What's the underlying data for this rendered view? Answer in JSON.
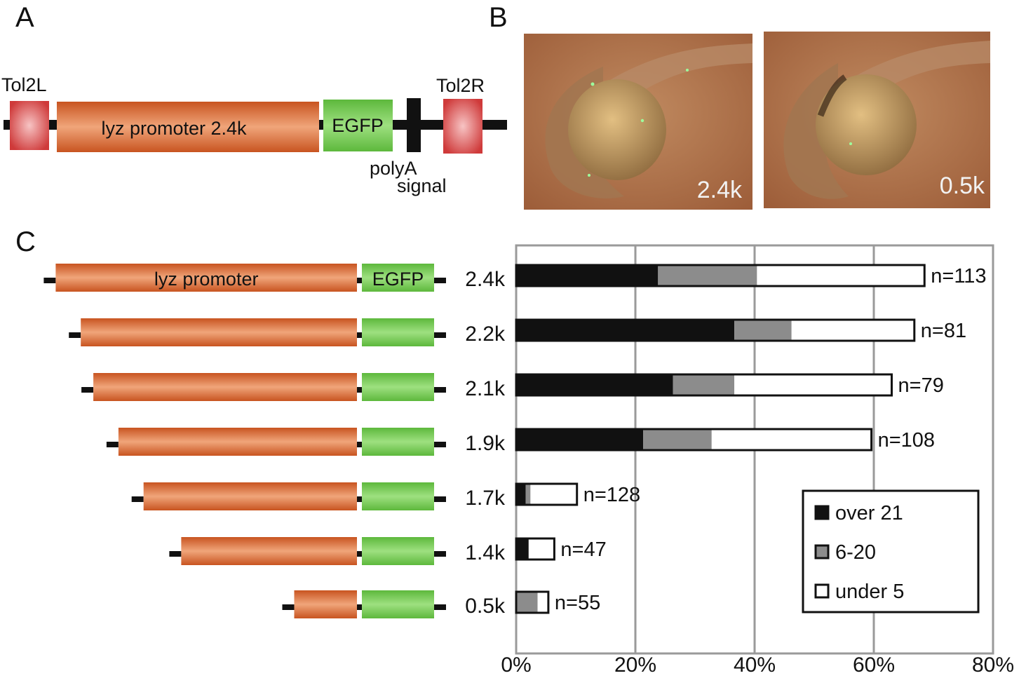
{
  "panels": {
    "a": "A",
    "b": "B",
    "c": "C"
  },
  "panel_a": {
    "tol2l": "Tol2L",
    "tol2r": "Tol2R",
    "promoter": "lyz promoter 2.4k",
    "egfp": "EGFP",
    "polya_line1": "polyA",
    "polya_line2": "signal"
  },
  "panel_b": {
    "photo1_label": "2.4k",
    "photo2_label": "0.5k"
  },
  "panel_c": {
    "promoter_label": "lyz promoter",
    "egfp_label": "EGFP",
    "construct_lengths_k": [
      2.4,
      2.2,
      2.1,
      1.9,
      1.7,
      1.4,
      0.5
    ]
  },
  "colors": {
    "promoter": "#d9622a",
    "egfp": "#6cc44a",
    "tol2": "#d94040",
    "over21": "#111111",
    "mid": "#8c8c8c",
    "under5": "#ffffff",
    "grid": "#9a9a9a"
  },
  "chart_data": {
    "type": "bar",
    "orientation": "horizontal",
    "stacked": true,
    "categories": [
      "2.4k",
      "2.2k",
      "2.1k",
      "1.9k",
      "1.7k",
      "1.4k",
      "0.5k"
    ],
    "series": [
      {
        "name": "over 21",
        "values": [
          23.8,
          36.6,
          26.3,
          21.3,
          1.6,
          2.1,
          0
        ]
      },
      {
        "name": "6-20",
        "values": [
          16.6,
          9.6,
          10.3,
          11.5,
          0.8,
          0,
          3.6
        ]
      },
      {
        "name": "under 5",
        "values": [
          28.1,
          20.6,
          26.4,
          26.8,
          7.8,
          4.3,
          1.8
        ]
      }
    ],
    "n_labels": [
      "n=113",
      "n=81",
      "n=79",
      "n=108",
      "n=128",
      "n=47",
      "n=55"
    ],
    "xlim": [
      0,
      80
    ],
    "xticks": [
      "0%",
      "20%",
      "40%",
      "60%",
      "80%"
    ],
    "grid": true,
    "legend_position": "bottom-right"
  }
}
